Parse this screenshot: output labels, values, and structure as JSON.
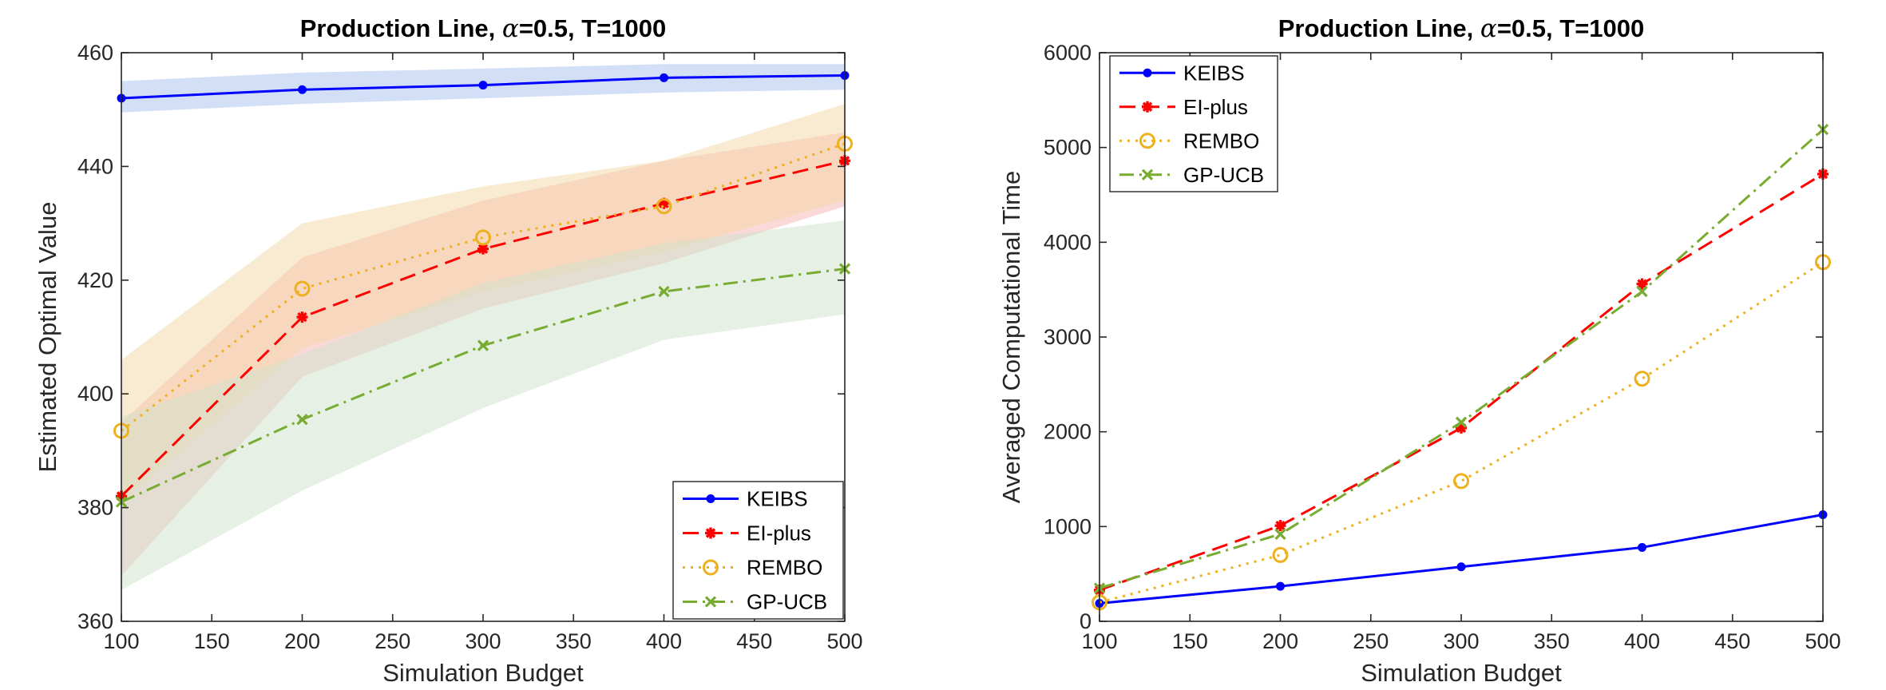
{
  "chart_data": [
    {
      "type": "line",
      "title_prefix": "Production Line, ",
      "title_greek": "α",
      "title_suffix": "=0.5, T=1000",
      "xlabel": "Simulation Budget",
      "ylabel": "Estimated Optimal Value",
      "x": [
        100,
        200,
        300,
        400,
        500
      ],
      "xlim": [
        100,
        500
      ],
      "ylim": [
        360,
        460
      ],
      "xticks": [
        100,
        150,
        200,
        250,
        300,
        350,
        400,
        450,
        500
      ],
      "yticks": [
        360,
        380,
        400,
        420,
        440,
        460
      ],
      "legend_position": "bottom-right",
      "series": [
        {
          "name": "KEIBS",
          "values": [
            452.0,
            453.5,
            454.3,
            455.6,
            456.0
          ],
          "lower": [
            449.5,
            451.0,
            452.0,
            453.0,
            453.5
          ],
          "upper": [
            455.0,
            456.5,
            457.2,
            458.0,
            458.0
          ],
          "color": "#0000ff",
          "band_color": "#a6c0f0",
          "marker": "dot",
          "dash": ""
        },
        {
          "name": "EI-plus",
          "values": [
            382.0,
            413.5,
            425.5,
            433.5,
            441.0
          ],
          "lower": [
            368.0,
            403.0,
            415.0,
            423.0,
            433.0
          ],
          "upper": [
            395.0,
            424.0,
            434.0,
            441.0,
            446.0
          ],
          "color": "#ff0000",
          "band_color": "#f5b4b4",
          "marker": "star",
          "dash": "20,10"
        },
        {
          "name": "REMBO",
          "values": [
            393.5,
            418.5,
            427.5,
            433.0,
            444.0
          ],
          "lower": [
            381.0,
            408.0,
            418.0,
            425.0,
            434.0
          ],
          "upper": [
            406.0,
            430.0,
            436.5,
            441.0,
            451.0
          ],
          "color": "#edb120",
          "band_color": "#f4d7a6",
          "marker": "circle",
          "dash": "3,7"
        },
        {
          "name": "GP-UCB",
          "values": [
            381.0,
            395.5,
            408.5,
            418.0,
            422.0
          ],
          "lower": [
            365.5,
            383.0,
            397.5,
            409.5,
            414.0
          ],
          "upper": [
            396.0,
            407.0,
            419.5,
            426.5,
            430.5
          ],
          "color": "#77ac30",
          "band_color": "#cde2c9",
          "marker": "x",
          "dash": "18,7,3,7"
        }
      ]
    },
    {
      "type": "line",
      "title_prefix": "Production Line, ",
      "title_greek": "α",
      "title_suffix": "=0.5, T=1000",
      "xlabel": "Simulation Budget",
      "ylabel": "Averaged Computational Time",
      "x": [
        100,
        200,
        300,
        400,
        500
      ],
      "xlim": [
        100,
        500
      ],
      "ylim": [
        0,
        6000
      ],
      "xticks": [
        100,
        150,
        200,
        250,
        300,
        350,
        400,
        450,
        500
      ],
      "yticks": [
        0,
        1000,
        2000,
        3000,
        4000,
        5000,
        6000
      ],
      "legend_position": "top-left",
      "series": [
        {
          "name": "KEIBS",
          "values": [
            190,
            370,
            575,
            780,
            1125
          ],
          "color": "#0000ff",
          "marker": "dot",
          "dash": ""
        },
        {
          "name": "EI-plus",
          "values": [
            330,
            1010,
            2040,
            3560,
            4720
          ],
          "color": "#ff0000",
          "marker": "star",
          "dash": "20,10"
        },
        {
          "name": "REMBO",
          "values": [
            200,
            700,
            1480,
            2560,
            3790
          ],
          "color": "#edb120",
          "marker": "circle",
          "dash": "3,7"
        },
        {
          "name": "GP-UCB",
          "values": [
            350,
            920,
            2100,
            3480,
            5190
          ],
          "color": "#77ac30",
          "marker": "x",
          "dash": "18,7,3,7"
        }
      ]
    }
  ]
}
